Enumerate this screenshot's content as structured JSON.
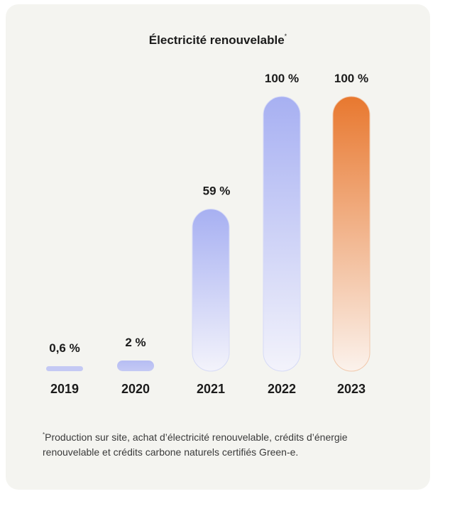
{
  "chart_data": {
    "type": "bar",
    "title": "Électricité renouvelable",
    "title_mark": "*",
    "categories": [
      "2019",
      "2020",
      "2021",
      "2022",
      "2023"
    ],
    "values": [
      0.6,
      2,
      59,
      100,
      100
    ],
    "value_labels": [
      "0,6 %",
      "2 %",
      "59 %",
      "100 %",
      "100 %"
    ],
    "ylim": [
      0,
      100
    ],
    "grid": false,
    "colors": {
      "blue": "#a7b0f2",
      "orange": "#e8782f",
      "highlight_category": "2023"
    }
  },
  "footnote": {
    "mark": "*",
    "text": "Production sur site, achat d’électricité renouvelable, crédits d’énergie renouvelable et crédits carbone naturels certifiés Green-e."
  }
}
